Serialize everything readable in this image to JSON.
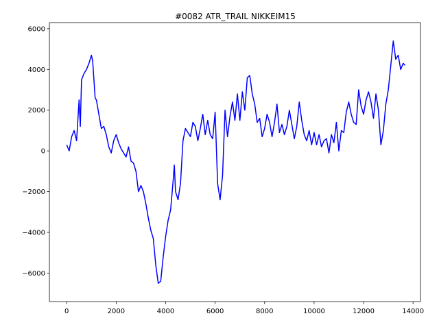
{
  "chart_data": {
    "type": "line",
    "title": "#0082 ATR_TRAIL NIKKEIM15",
    "xlabel": "",
    "ylabel": "",
    "xlim": [
      -700,
      14300
    ],
    "ylim": [
      -7400,
      6300
    ],
    "xticks": [
      0,
      2000,
      4000,
      6000,
      8000,
      10000,
      12000,
      14000
    ],
    "yticks": [
      -6000,
      -4000,
      -2000,
      0,
      2000,
      4000,
      6000
    ],
    "grid": false,
    "legend": "none",
    "series": [
      {
        "color": "#0000ff",
        "x": [
          0,
          100,
          200,
          300,
          400,
          500,
          550,
          600,
          700,
          800,
          900,
          1000,
          1050,
          1100,
          1150,
          1200,
          1300,
          1400,
          1500,
          1600,
          1700,
          1800,
          1900,
          2000,
          2100,
          2200,
          2300,
          2400,
          2500,
          2600,
          2700,
          2800,
          2900,
          3000,
          3100,
          3200,
          3300,
          3400,
          3500,
          3600,
          3700,
          3800,
          3900,
          4000,
          4100,
          4200,
          4300,
          4350,
          4400,
          4500,
          4600,
          4700,
          4800,
          4900,
          5000,
          5100,
          5200,
          5300,
          5400,
          5500,
          5600,
          5700,
          5800,
          5900,
          6000,
          6100,
          6200,
          6300,
          6400,
          6500,
          6600,
          6700,
          6800,
          6900,
          7000,
          7100,
          7200,
          7300,
          7400,
          7500,
          7600,
          7700,
          7800,
          7900,
          8000,
          8100,
          8200,
          8300,
          8400,
          8500,
          8600,
          8700,
          8800,
          8900,
          9000,
          9100,
          9200,
          9300,
          9400,
          9500,
          9600,
          9700,
          9800,
          9900,
          10000,
          10100,
          10200,
          10300,
          10400,
          10500,
          10600,
          10700,
          10800,
          10900,
          11000,
          11100,
          11200,
          11300,
          11400,
          11500,
          11600,
          11700,
          11800,
          11900,
          12000,
          12100,
          12200,
          12300,
          12400,
          12500,
          12600,
          12700,
          12800,
          12900,
          13000,
          13100,
          13200,
          13300,
          13400,
          13500,
          13600,
          13680
        ],
        "y": [
          300,
          0,
          700,
          1000,
          500,
          2500,
          1200,
          3500,
          3800,
          4000,
          4300,
          4700,
          4400,
          3500,
          2600,
          2500,
          1800,
          1100,
          1200,
          800,
          200,
          -100,
          500,
          800,
          400,
          100,
          -100,
          -300,
          200,
          -500,
          -600,
          -1000,
          -2000,
          -1700,
          -2000,
          -2600,
          -3300,
          -3900,
          -4300,
          -5600,
          -6500,
          -6400,
          -5200,
          -4200,
          -3400,
          -2900,
          -1500,
          -700,
          -2000,
          -2400,
          -1600,
          500,
          1100,
          900,
          700,
          1400,
          1200,
          500,
          1100,
          1800,
          800,
          1500,
          800,
          600,
          1900,
          -1600,
          -2400,
          -1200,
          2000,
          700,
          1700,
          2400,
          1500,
          2800,
          1500,
          2900,
          2000,
          3600,
          3700,
          2800,
          2300,
          1400,
          1600,
          700,
          1100,
          1800,
          1400,
          700,
          1400,
          2300,
          900,
          1300,
          800,
          1200,
          2000,
          1300,
          600,
          1200,
          2400,
          1500,
          800,
          500,
          1000,
          300,
          900,
          300,
          800,
          200,
          500,
          600,
          -100,
          800,
          400,
          1400,
          0,
          1000,
          900,
          1900,
          2400,
          1800,
          1400,
          1300,
          3000,
          2200,
          1800,
          2500,
          2900,
          2400,
          1600,
          2800,
          2000,
          300,
          1000,
          2300,
          3000,
          4200,
          5400,
          4500,
          4700,
          4000,
          4300,
          4200
        ]
      }
    ]
  }
}
